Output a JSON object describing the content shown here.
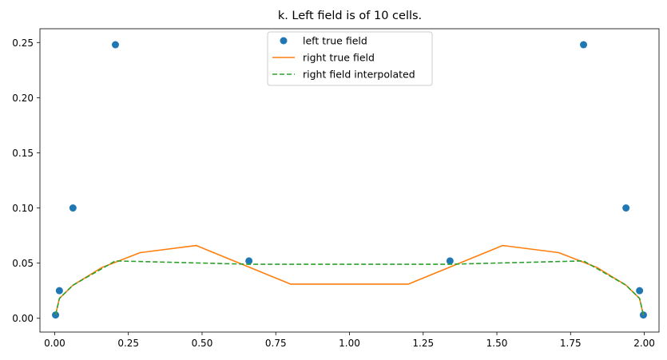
{
  "chart_data": {
    "type": "line",
    "title": "k. Left field is of 10 cells.",
    "xlabel": "",
    "ylabel": "",
    "xlim": [
      -0.05,
      2.05
    ],
    "ylim": [
      -0.0125,
      0.2625
    ],
    "x_ticks": [
      0.0,
      0.25,
      0.5,
      0.75,
      1.0,
      1.25,
      1.5,
      1.75,
      2.0
    ],
    "x_tick_labels": [
      "0.00",
      "0.25",
      "0.50",
      "0.75",
      "1.00",
      "1.25",
      "1.50",
      "1.75",
      "2.00"
    ],
    "y_ticks": [
      0.0,
      0.05,
      0.1,
      0.15,
      0.2,
      0.25
    ],
    "y_tick_labels": [
      "0.00",
      "0.05",
      "0.10",
      "0.15",
      "0.20",
      "0.25"
    ],
    "grid": false,
    "legend_position": "top-center",
    "series": [
      {
        "name": "left true field",
        "kind": "scatter",
        "color": "#1f77b4",
        "x": [
          0.003,
          0.016,
          0.062,
          0.206,
          0.659,
          1.341,
          1.794,
          1.938,
          1.984,
          1.997
        ],
        "y": [
          0.003,
          0.025,
          0.1,
          0.248,
          0.052,
          0.052,
          0.248,
          0.1,
          0.025,
          0.003
        ]
      },
      {
        "name": "right true field",
        "kind": "line",
        "style": "solid",
        "color": "#ff7f0e",
        "x": [
          0.003,
          0.016,
          0.062,
          0.16,
          0.29,
          0.48,
          0.8,
          1.2,
          1.52,
          1.71,
          1.84,
          1.938,
          1.984,
          1.997
        ],
        "y": [
          0.003,
          0.018,
          0.03,
          0.046,
          0.0595,
          0.066,
          0.031,
          0.031,
          0.066,
          0.0595,
          0.046,
          0.03,
          0.018,
          0.003
        ]
      },
      {
        "name": "right field interpolated",
        "kind": "line",
        "style": "dashed",
        "color": "#2ca02c",
        "x": [
          0.003,
          0.016,
          0.062,
          0.206,
          0.659,
          1.341,
          1.794,
          1.938,
          1.984,
          1.997
        ],
        "y": [
          0.003,
          0.018,
          0.03,
          0.052,
          0.049,
          0.049,
          0.052,
          0.03,
          0.018,
          0.003
        ]
      }
    ]
  }
}
